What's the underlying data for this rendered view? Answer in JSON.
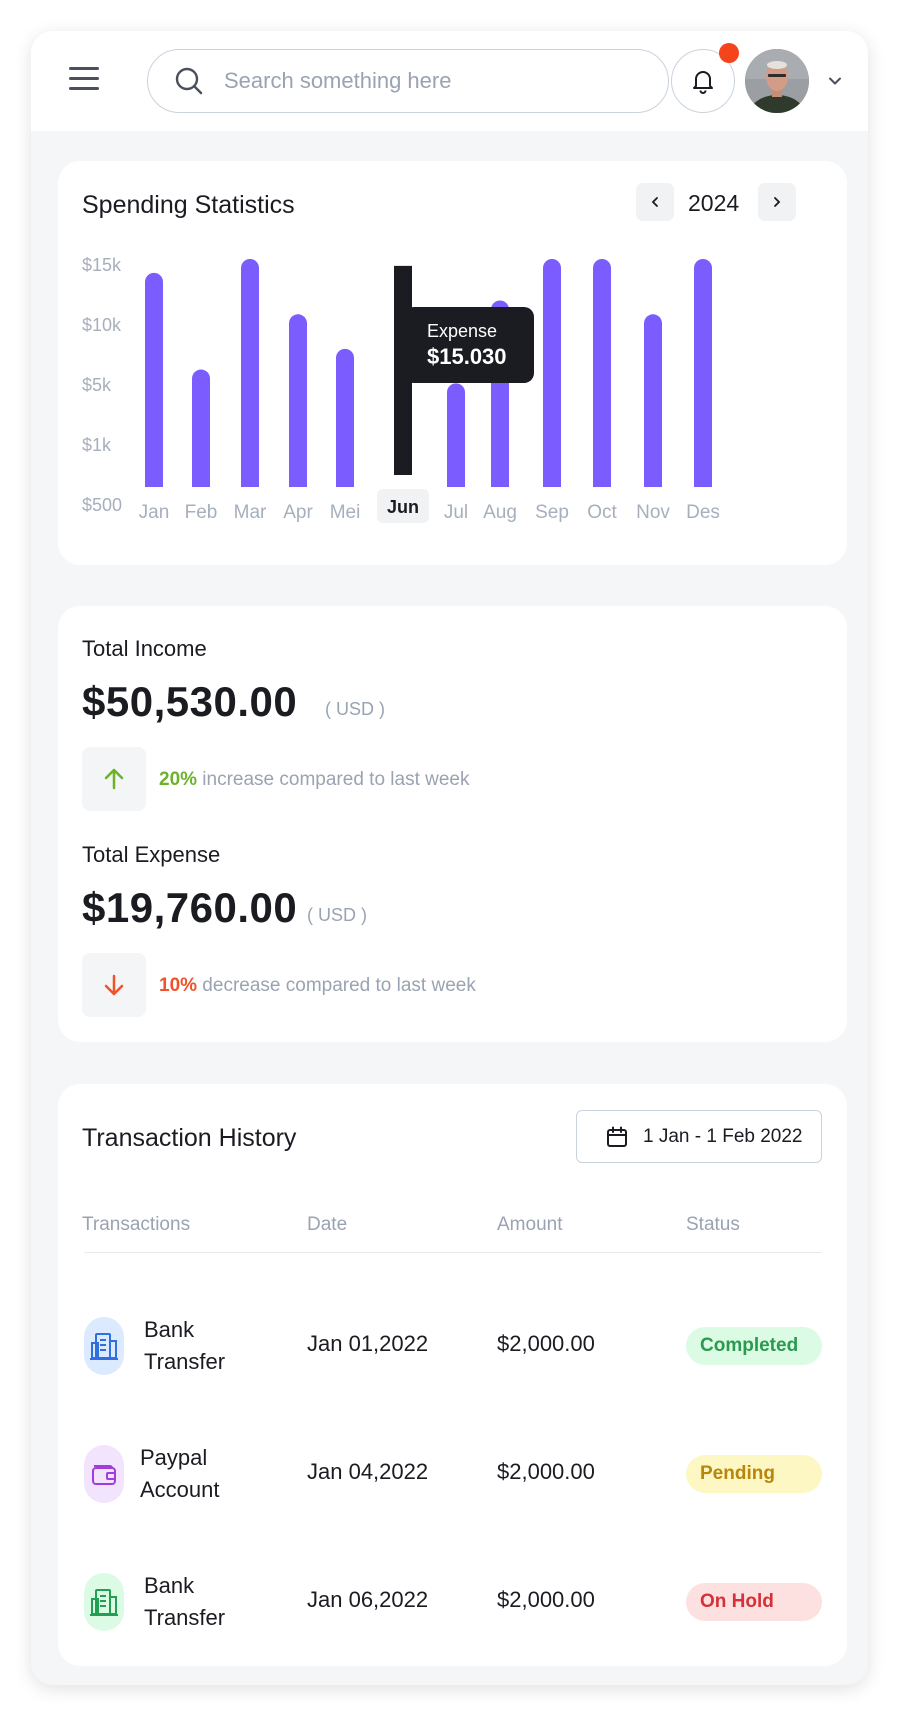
{
  "header": {
    "search_placeholder": "Search something here",
    "icons": [
      "menu-icon",
      "search-icon",
      "bell-icon",
      "chevron-down-icon"
    ],
    "notification_dot_color": "#f5431c"
  },
  "spending": {
    "title": "Spending Statistics",
    "year": "2024",
    "tooltip": {
      "label": "Expense",
      "value": "$15.030"
    }
  },
  "chart_data": {
    "type": "bar",
    "categories": [
      "Jan",
      "Feb",
      "Mar",
      "Apr",
      "Mei",
      "Jun",
      "Jul",
      "Aug",
      "Sep",
      "Oct",
      "Nov",
      "Des"
    ],
    "y_ticks": [
      "$15k",
      "$10k",
      "$5k",
      "$1k",
      "$500"
    ],
    "values": [
      15.5,
      8.5,
      16.5,
      12.5,
      10,
      16,
      7.5,
      13.5,
      16.5,
      16.5,
      12.5,
      16.5
    ],
    "highlight_index": 5,
    "highlight_label": "Jun",
    "bar_color": "#7b5cff",
    "highlight_color": "#1b1c21",
    "ylim": [
      0,
      16.5
    ],
    "grid": false
  },
  "income": {
    "title": "Total Income",
    "amount": "$50,530.00",
    "currency": "( USD )",
    "pct": "20%",
    "trend_text": " increase compared to last week",
    "color": "#6db12c"
  },
  "expense": {
    "title": "Total Expense",
    "amount": "$19,760.00",
    "currency": "( USD )",
    "pct": "10%",
    "trend_text": " decrease compared to last week",
    "color": "#f0522b"
  },
  "transactions": {
    "title": "Transaction History",
    "date_range": "1 Jan - 1 Feb 2022",
    "columns": [
      "Transactions",
      "Date",
      "Amount",
      "Status"
    ],
    "rows": [
      {
        "name_line1": "Bank",
        "name_line2": "Transfer",
        "date": "Jan 01,2022",
        "amount": "$2,000.00",
        "status": "Completed",
        "icon": "bank-building-icon"
      },
      {
        "name_line1": "Paypal",
        "name_line2": "Account",
        "date": "Jan 04,2022",
        "amount": "$2,000.00",
        "status": "Pending",
        "icon": "wallet-icon"
      },
      {
        "name_line1": "Bank",
        "name_line2": "Transfer",
        "date": "Jan 06,2022",
        "amount": "$2,000.00",
        "status": "On Hold",
        "icon": "bank-building-icon"
      }
    ],
    "status_colors": {
      "Completed": {
        "bg": "#dcfbe5",
        "fg": "#2a9a4e"
      },
      "Pending": {
        "bg": "#fdf7c3",
        "fg": "#b8860b"
      },
      "On Hold": {
        "bg": "#fde0e0",
        "fg": "#d6303a"
      }
    }
  }
}
